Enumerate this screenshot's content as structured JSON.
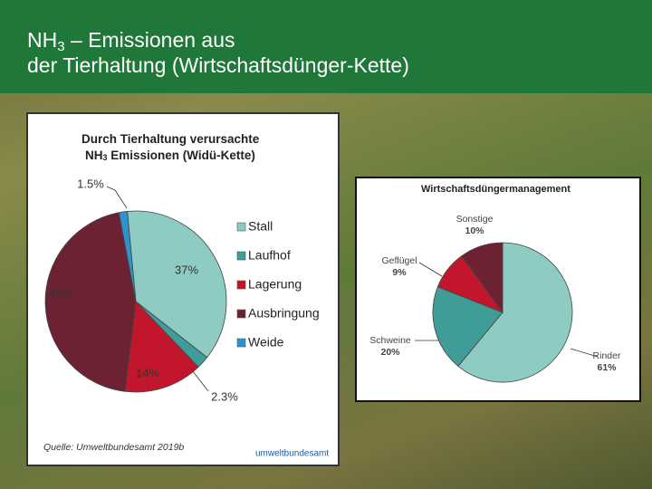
{
  "slide": {
    "title_part1": "NH",
    "title_sub": "3",
    "title_part2": " – Emissionen aus",
    "title_line2": "der Tierhaltung (Wirtschaftsdünger-Kette)"
  },
  "chart_data": [
    {
      "type": "pie",
      "title": [
        "Durch Tierhaltung verursachte",
        "NH",
        "3",
        " Emissionen (Widü-Kette)"
      ],
      "categories": [
        "Stall",
        "Laufhof",
        "Lagerung",
        "Ausbringung",
        "Weide"
      ],
      "values": [
        37,
        2.3,
        14,
        45,
        1.5
      ],
      "value_labels": [
        "37%",
        "2.3%",
        "14%",
        "45%",
        "1.5%"
      ],
      "colors": [
        "#8ecbc3",
        "#3f9c96",
        "#c2162d",
        "#6d2233",
        "#2f92cc"
      ],
      "legend": "right",
      "source": "Quelle: Umweltbundesamt 2019b",
      "logo": "umweltbundesamt"
    },
    {
      "type": "pie",
      "title": [
        "Wirtschaftsdüngermanagement"
      ],
      "categories": [
        "Rinder",
        "Schweine",
        "Geflügel",
        "Sonstige"
      ],
      "values": [
        61,
        20,
        9,
        10
      ],
      "value_labels": [
        "61%",
        "20%",
        "9%",
        "10%"
      ],
      "colors": [
        "#8ecbc3",
        "#3f9c96",
        "#c2162d",
        "#6d2233"
      ]
    }
  ]
}
